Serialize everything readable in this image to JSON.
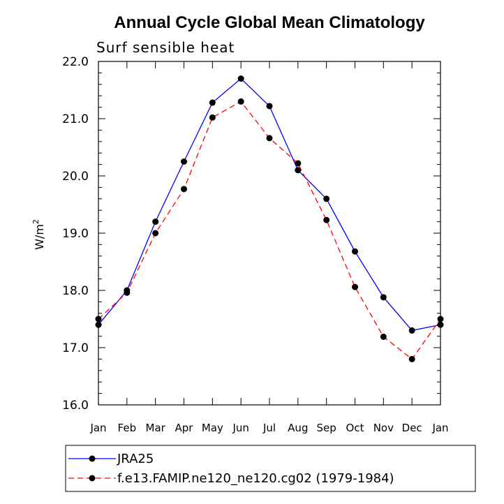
{
  "chart_data": {
    "type": "line",
    "title": "Annual Cycle Global Mean Climatology",
    "subtitle": "Surf sensible heat",
    "ylabel_base": "W/m",
    "ylabel_sup": "2",
    "xlabel": "",
    "categories": [
      "Jan",
      "Feb",
      "Mar",
      "Apr",
      "May",
      "Jun",
      "Jul",
      "Aug",
      "Sep",
      "Oct",
      "Nov",
      "Dec",
      "Jan"
    ],
    "ylim": [
      16.0,
      22.0
    ],
    "yticks": [
      "16.0",
      "17.0",
      "18.0",
      "19.0",
      "20.0",
      "21.0",
      "22.0"
    ],
    "ytick_values": [
      16,
      17,
      18,
      19,
      20,
      21,
      22
    ],
    "series": [
      {
        "name": "JRA25",
        "color": "#0000ff",
        "dash": "solid",
        "values": [
          17.4,
          18.0,
          19.2,
          20.25,
          21.28,
          21.7,
          21.22,
          20.1,
          19.6,
          18.68,
          17.88,
          17.3,
          17.4
        ]
      },
      {
        "name": "f.e13.FAMIP.ne120_ne120.cg02 (1979-1984)",
        "color": "#ff0000",
        "dash": "dashed",
        "values": [
          17.5,
          17.96,
          19.0,
          19.77,
          21.02,
          21.3,
          20.66,
          20.22,
          19.23,
          18.06,
          17.19,
          16.8,
          17.5
        ]
      }
    ]
  }
}
